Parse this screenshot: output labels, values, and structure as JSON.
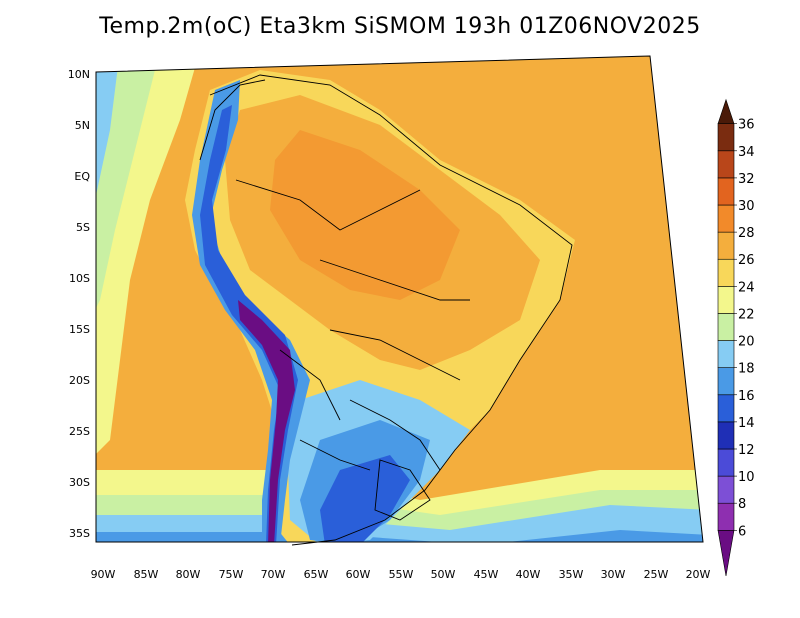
{
  "title": "Temp.2m(oC) Eta3km SiSMOM 193h 01Z06NOV2025",
  "map": {
    "lat_labels": [
      "10N",
      "5N",
      "EQ",
      "5S",
      "10S",
      "15S",
      "20S",
      "25S",
      "30S",
      "35S"
    ],
    "lon_labels": [
      "90W",
      "85W",
      "80W",
      "75W",
      "70W",
      "65W",
      "60W",
      "55W",
      "50W",
      "45W",
      "40W",
      "35W",
      "30W",
      "25W",
      "20W"
    ],
    "lon_range": [
      -91,
      -19
    ],
    "lat_range": [
      -38,
      12
    ]
  },
  "colorbar": {
    "labels": [
      "6",
      "8",
      "10",
      "12",
      "14",
      "16",
      "18",
      "20",
      "22",
      "24",
      "26",
      "28",
      "30",
      "32",
      "34",
      "36"
    ],
    "colors": [
      "#6a0d83",
      "#8e2fb0",
      "#7d4fd6",
      "#4b4bd8",
      "#1f2fb6",
      "#2a5fd9",
      "#4a9ae6",
      "#86ccf3",
      "#c9f0a3",
      "#f3f78c",
      "#f8d75a",
      "#f4ae3d",
      "#f28a2a",
      "#e2641f",
      "#b9461a",
      "#7a2c10",
      "#4a1a08"
    ]
  }
}
